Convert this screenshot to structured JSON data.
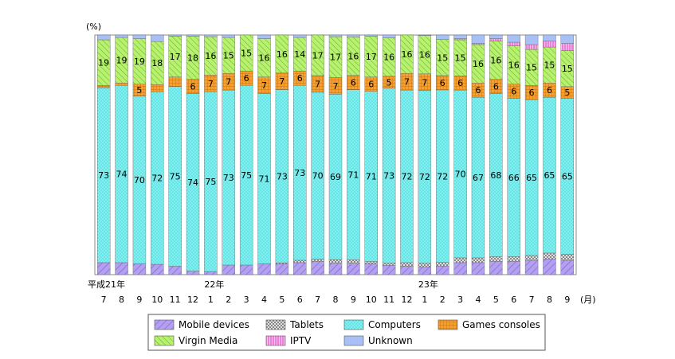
{
  "chart_data": {
    "type": "bar",
    "stacked": true,
    "y_unit_label": "(%)",
    "x_unit_label": "(月)",
    "ylim": [
      0,
      100
    ],
    "grid": false,
    "legend_position": "bottom",
    "categories": [
      "7",
      "8",
      "9",
      "10",
      "11",
      "12",
      "1",
      "2",
      "3",
      "4",
      "5",
      "6",
      "7",
      "8",
      "9",
      "10",
      "11",
      "12",
      "1",
      "2",
      "3",
      "4",
      "5",
      "6",
      "7",
      "8",
      "9"
    ],
    "year_labels": [
      {
        "index": 0,
        "label": "平成21年"
      },
      {
        "index": 6,
        "label": "22年"
      },
      {
        "index": 18,
        "label": "23年"
      }
    ],
    "series": [
      {
        "name": "Mobile devices",
        "color": "#b4a0f0",
        "pattern": "diagonal",
        "values": [
          5,
          5,
          4.5,
          4.3,
          3.5,
          1.5,
          1.3,
          4,
          4,
          4.5,
          4.5,
          5,
          5.5,
          4.8,
          4.7,
          4.5,
          3.8,
          3.5,
          3.3,
          3.6,
          5,
          5,
          5.5,
          5.5,
          6,
          6.5,
          6
        ]
      },
      {
        "name": "Tablets",
        "color": "#c8c8c8",
        "pattern": "checker",
        "values": [
          0,
          0,
          0,
          0,
          0,
          0,
          0,
          0,
          0,
          0,
          0.5,
          1,
          1,
          1.5,
          1.5,
          1,
          1,
          1.5,
          1.5,
          1.5,
          2,
          2,
          2,
          2,
          2,
          2.5,
          2.5
        ]
      },
      {
        "name": "Computers",
        "color": "#7ef0f0",
        "pattern": "dots",
        "values": [
          73,
          74,
          70,
          72,
          75,
          74,
          75,
          73,
          75,
          71,
          73,
          73,
          70,
          69,
          71,
          71,
          73,
          72,
          72,
          72,
          70,
          67,
          68,
          66,
          65,
          65,
          65
        ],
        "labels": [
          73,
          74,
          70,
          72,
          75,
          74,
          75,
          73,
          75,
          71,
          73,
          73,
          70,
          69,
          71,
          71,
          73,
          72,
          72,
          72,
          70,
          67,
          68,
          66,
          65,
          65,
          65
        ]
      },
      {
        "name": "Games consoles",
        "color": "#f5a030",
        "pattern": "grid",
        "values": [
          1,
          1,
          5,
          3,
          4,
          6,
          7,
          7,
          6,
          7,
          7,
          6,
          7,
          7,
          6,
          6,
          5,
          7,
          7,
          6,
          6,
          6,
          6,
          6,
          6,
          6,
          5
        ],
        "labels": [
          null,
          null,
          5,
          null,
          null,
          6,
          7,
          7,
          6,
          7,
          7,
          6,
          7,
          7,
          6,
          6,
          5,
          7,
          7,
          6,
          6,
          6,
          6,
          6,
          6,
          6,
          5
        ]
      },
      {
        "name": "Virgin Media",
        "color": "#a8f060",
        "pattern": "diagonal",
        "values": [
          19,
          19,
          19,
          18,
          17,
          18,
          16,
          15,
          15,
          16,
          16,
          14,
          17,
          17,
          16,
          17,
          16,
          16,
          16,
          15,
          15,
          16,
          16,
          16,
          15,
          15,
          15
        ],
        "labels": [
          19,
          19,
          19,
          18,
          17,
          18,
          16,
          15,
          15,
          16,
          16,
          14,
          17,
          17,
          16,
          17,
          16,
          16,
          16,
          15,
          15,
          16,
          16,
          16,
          15,
          15,
          15
        ]
      },
      {
        "name": "IPTV",
        "color": "#f08ce0",
        "pattern": "vertical",
        "values": [
          0,
          0,
          0,
          0,
          0,
          0,
          0,
          0,
          0,
          0,
          0,
          0,
          0,
          0,
          0,
          0,
          0,
          0,
          0,
          0,
          0.5,
          0.5,
          1,
          1.5,
          2,
          2.5,
          3
        ]
      },
      {
        "name": "Unknown",
        "color": "#a8c0f5",
        "pattern": "solid",
        "values": [
          2,
          1,
          1.5,
          2.7,
          0.5,
          0.5,
          0.7,
          1,
          0,
          1.5,
          -1,
          1,
          -0.5,
          0.7,
          0.8,
          0.5,
          1.2,
          0,
          0.2,
          1.9,
          1.5,
          3.5,
          1.5,
          3,
          4,
          2.5,
          3.5
        ]
      }
    ]
  }
}
